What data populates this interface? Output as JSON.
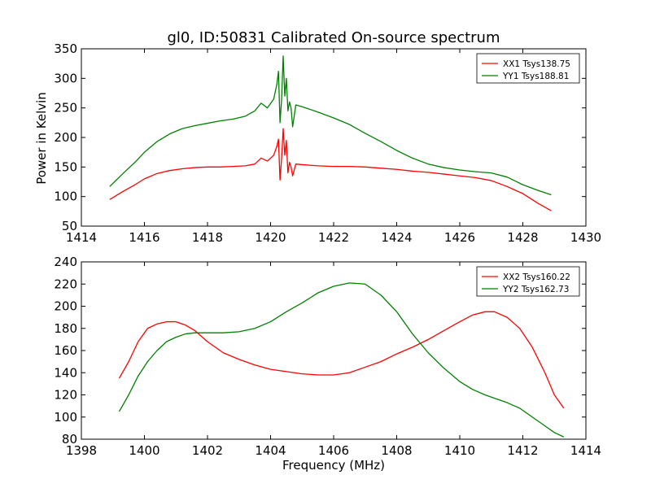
{
  "chart_data": [
    {
      "type": "line",
      "title": "gl0, ID:50831 Calibrated On-source spectrum",
      "xlabel": "",
      "ylabel": "Power in Kelvin",
      "xlim": [
        1414,
        1430
      ],
      "ylim": [
        50,
        350
      ],
      "xticks": [
        1414,
        1416,
        1418,
        1420,
        1422,
        1424,
        1426,
        1428,
        1430
      ],
      "yticks": [
        50,
        100,
        150,
        200,
        250,
        300,
        350
      ],
      "legend_position": "top-right",
      "series": [
        {
          "name": "XX1 Tsys138.75",
          "color": "#ff0000",
          "x": [
            1414.9,
            1415.3,
            1415.7,
            1416.0,
            1416.4,
            1416.8,
            1417.2,
            1417.6,
            1418.0,
            1418.4,
            1418.8,
            1419.2,
            1419.5,
            1419.7,
            1419.9,
            1420.1,
            1420.2,
            1420.25,
            1420.3,
            1420.35,
            1420.4,
            1420.45,
            1420.5,
            1420.55,
            1420.6,
            1420.65,
            1420.7,
            1420.8,
            1421.0,
            1421.5,
            1422.0,
            1422.5,
            1423.0,
            1423.5,
            1424.0,
            1424.5,
            1425.0,
            1425.5,
            1426.0,
            1426.5,
            1427.0,
            1427.5,
            1428.0,
            1428.5,
            1428.9
          ],
          "y": [
            95,
            108,
            120,
            130,
            139,
            144,
            147,
            149,
            150,
            150,
            151,
            152,
            155,
            165,
            160,
            170,
            185,
            197,
            128,
            165,
            215,
            170,
            195,
            140,
            158,
            150,
            135,
            155,
            154,
            152,
            151,
            151,
            150,
            148,
            146,
            143,
            141,
            138,
            135,
            132,
            127,
            117,
            105,
            88,
            76
          ]
        },
        {
          "name": "YY1 Tsys188.81",
          "color": "#008000",
          "x": [
            1414.9,
            1415.3,
            1415.7,
            1416.0,
            1416.4,
            1416.8,
            1417.2,
            1417.6,
            1418.0,
            1418.4,
            1418.8,
            1419.2,
            1419.5,
            1419.7,
            1419.9,
            1420.1,
            1420.2,
            1420.25,
            1420.3,
            1420.35,
            1420.4,
            1420.45,
            1420.5,
            1420.55,
            1420.6,
            1420.65,
            1420.7,
            1420.8,
            1421.0,
            1421.5,
            1422.0,
            1422.5,
            1423.0,
            1423.5,
            1424.0,
            1424.5,
            1425.0,
            1425.5,
            1426.0,
            1426.5,
            1427.0,
            1427.5,
            1428.0,
            1428.5,
            1428.9
          ],
          "y": [
            117,
            138,
            158,
            175,
            193,
            206,
            215,
            220,
            224,
            228,
            231,
            236,
            245,
            258,
            250,
            265,
            290,
            312,
            225,
            265,
            338,
            270,
            300,
            245,
            260,
            250,
            218,
            255,
            252,
            243,
            233,
            222,
            207,
            193,
            178,
            165,
            155,
            149,
            145,
            142,
            140,
            133,
            120,
            110,
            103
          ]
        }
      ]
    },
    {
      "type": "line",
      "title": "",
      "xlabel": "Frequency (MHz)",
      "ylabel": "",
      "xlim": [
        1398,
        1414
      ],
      "ylim": [
        80,
        240
      ],
      "xticks": [
        1398,
        1400,
        1402,
        1404,
        1406,
        1408,
        1410,
        1412,
        1414
      ],
      "yticks": [
        80,
        100,
        120,
        140,
        160,
        180,
        200,
        220,
        240
      ],
      "legend_position": "top-right",
      "series": [
        {
          "name": "XX2 Tsys160.22",
          "color": "#ff0000",
          "x": [
            1399.2,
            1399.5,
            1399.8,
            1400.1,
            1400.4,
            1400.7,
            1401.0,
            1401.3,
            1401.6,
            1402.0,
            1402.5,
            1403.0,
            1403.5,
            1404.0,
            1404.5,
            1405.0,
            1405.5,
            1406.0,
            1406.5,
            1407.0,
            1407.5,
            1408.0,
            1408.5,
            1409.0,
            1409.5,
            1410.0,
            1410.4,
            1410.8,
            1411.1,
            1411.5,
            1411.9,
            1412.3,
            1412.7,
            1413.0,
            1413.3
          ],
          "y": [
            135,
            150,
            168,
            180,
            184,
            186,
            186,
            183,
            178,
            168,
            158,
            152,
            147,
            143,
            141,
            139,
            138,
            138,
            140,
            145,
            150,
            157,
            163,
            170,
            178,
            186,
            192,
            195,
            195,
            190,
            180,
            163,
            140,
            120,
            108
          ]
        },
        {
          "name": "YY2 Tsys162.73",
          "color": "#008000",
          "x": [
            1399.2,
            1399.5,
            1399.8,
            1400.1,
            1400.4,
            1400.7,
            1401.0,
            1401.3,
            1401.6,
            1402.0,
            1402.5,
            1403.0,
            1403.5,
            1404.0,
            1404.5,
            1405.0,
            1405.5,
            1406.0,
            1406.5,
            1407.0,
            1407.5,
            1408.0,
            1408.5,
            1409.0,
            1409.5,
            1410.0,
            1410.4,
            1410.8,
            1411.1,
            1411.5,
            1411.9,
            1412.3,
            1412.7,
            1413.0,
            1413.3
          ],
          "y": [
            105,
            120,
            137,
            150,
            160,
            168,
            172,
            175,
            176,
            176,
            176,
            177,
            180,
            186,
            195,
            203,
            212,
            218,
            221,
            220,
            210,
            195,
            175,
            158,
            144,
            132,
            125,
            120,
            117,
            113,
            108,
            100,
            92,
            86,
            82
          ]
        }
      ]
    }
  ]
}
